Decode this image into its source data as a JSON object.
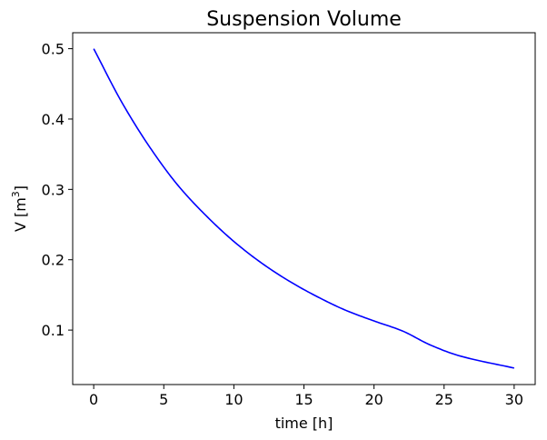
{
  "chart_data": {
    "type": "line",
    "title": "Suspension Volume",
    "xlabel": "time [h]",
    "ylabel_main": "V [m",
    "ylabel_sup": "3",
    "ylabel_close": "]",
    "xlim": [
      -1.5,
      31.5
    ],
    "ylim": [
      0.0226,
      0.5227
    ],
    "xticks": [
      0,
      5,
      10,
      15,
      20,
      25,
      30
    ],
    "xtick_labels": [
      "0",
      "5",
      "10",
      "15",
      "20",
      "25",
      "30"
    ],
    "yticks": [
      0.1,
      0.2,
      0.3,
      0.4,
      0.5
    ],
    "ytick_labels": [
      "0.1",
      "0.2",
      "0.3",
      "0.4",
      "0.5"
    ],
    "grid": false,
    "series": [
      {
        "color": "#0000ff",
        "x": [
          0,
          2,
          4,
          6,
          8,
          10,
          12,
          14,
          16,
          18,
          20,
          22,
          24,
          26,
          30
        ],
        "y": [
          0.5,
          0.424,
          0.36,
          0.306,
          0.263,
          0.226,
          0.195,
          0.169,
          0.147,
          0.128,
          0.113,
          0.099,
          0.079,
          0.064,
          0.046
        ]
      }
    ]
  }
}
